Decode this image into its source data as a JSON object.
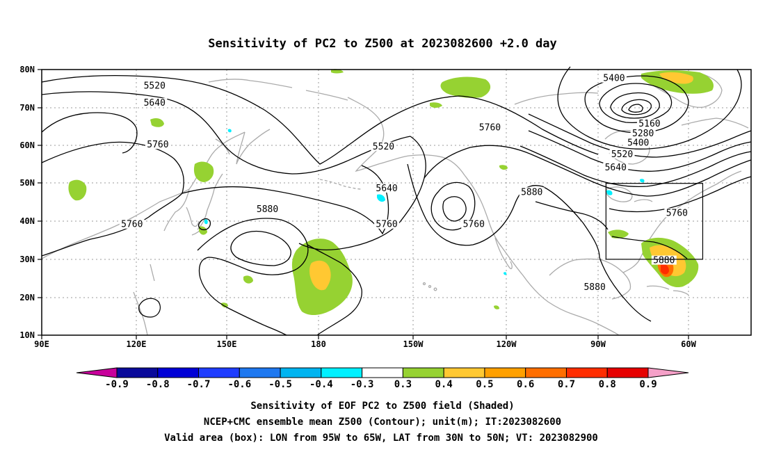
{
  "title": "Sensitivity of PC2 to Z500 at 2023082600 +2.0 day",
  "map": {
    "lon_ticks": [
      "90E",
      "120E",
      "150E",
      "180",
      "150W",
      "120W",
      "90W",
      "60W"
    ],
    "lat_ticks": [
      "80N",
      "70N",
      "60N",
      "50N",
      "40N",
      "30N",
      "20N",
      "10N"
    ],
    "lon_range": [
      "90E",
      "50W"
    ],
    "lat_range": [
      "10N",
      "80N"
    ],
    "grid": "dotted"
  },
  "contour_labels": [
    {
      "text": "5520",
      "lon": 125,
      "lat": 75.5
    },
    {
      "text": "5640",
      "lon": 125,
      "lat": 71
    },
    {
      "text": "5760",
      "lon": 126,
      "lat": 60
    },
    {
      "text": "5760",
      "lon": 118,
      "lat": 39
    },
    {
      "text": "5880",
      "lon": 160,
      "lat": 43
    },
    {
      "text": "5520",
      "lon": 196,
      "lat": 59.5
    },
    {
      "text": "5640",
      "lon": 197,
      "lat": 48.5
    },
    {
      "text": "5760",
      "lon": 197,
      "lat": 39
    },
    {
      "text": "5760",
      "lon": 224,
      "lat": 39
    },
    {
      "text": "5760",
      "lon": 229,
      "lat": 64.5
    },
    {
      "text": "5880",
      "lon": 242,
      "lat": 47.5
    },
    {
      "text": "5880",
      "lon": 261.5,
      "lat": 22.5
    },
    {
      "text": "5400",
      "lon": 267.5,
      "lat": 77.5
    },
    {
      "text": "5160",
      "lon": 278.5,
      "lat": 65.5
    },
    {
      "text": "5280",
      "lon": 276.5,
      "lat": 63
    },
    {
      "text": "5400",
      "lon": 275,
      "lat": 60.5
    },
    {
      "text": "5520",
      "lon": 270,
      "lat": 57.5
    },
    {
      "text": "5640",
      "lon": 268,
      "lat": 54
    },
    {
      "text": "5760",
      "lon": 287,
      "lat": 42
    },
    {
      "text": "5880",
      "lon": 283,
      "lat": 29.5
    }
  ],
  "valid_box": {
    "lon_min": -95,
    "lon_max": -65,
    "lat_min": 30,
    "lat_max": 50
  },
  "colorbar": {
    "labels": [
      "-0.9",
      "-0.8",
      "-0.7",
      "-0.6",
      "-0.5",
      "-0.4",
      "-0.3",
      "0.3",
      "0.4",
      "0.5",
      "0.6",
      "0.7",
      "0.8",
      "0.9"
    ],
    "colors": [
      "#c8009b",
      "#0a0a9a",
      "#0000d6",
      "#1e3cff",
      "#1e78f0",
      "#00b4f0",
      "#00f0ff",
      "#ffffff",
      "#96d232",
      "#ffc832",
      "#ffa000",
      "#ff6e00",
      "#ff2d00",
      "#e60000",
      "#f5a0c8"
    ]
  },
  "caption": [
    "Sensitivity of EOF PC2 to Z500 field (Shaded)",
    "NCEP+CMC ensemble mean Z500 (Contour); unit(m); IT:2023082600",
    "Valid area (box): LON from 95W to 65W, LAT from 30N to 50N; VT: 2023082900"
  ]
}
